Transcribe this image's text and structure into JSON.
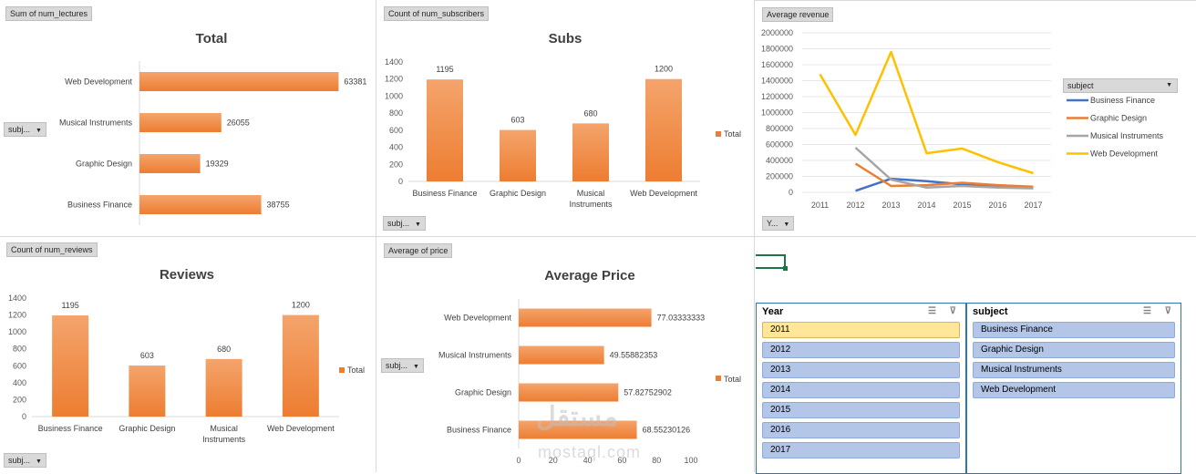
{
  "panels": {
    "lectures": {
      "field_button": "Sum of num_lectures",
      "filter_label": "subj...",
      "chart_data": {
        "type": "bar",
        "orientation": "horizontal",
        "title": "Total",
        "categories": [
          "Web Development",
          "Musical Instruments",
          "Graphic Design",
          "Business Finance"
        ],
        "values": [
          63381,
          26055,
          19329,
          38755
        ],
        "xlim": [
          0,
          65000
        ]
      }
    },
    "subscribers": {
      "field_button": "Count of num_subscribers",
      "filter_label": "subj...",
      "chart_data": {
        "type": "bar",
        "orientation": "vertical",
        "title": "Subs",
        "categories": [
          "Business Finance",
          "Graphic Design",
          "Musical Instruments",
          "Web Development"
        ],
        "category_lines": [
          [
            "Business Finance"
          ],
          [
            "Graphic Design"
          ],
          [
            "Musical",
            "Instruments"
          ],
          [
            "Web Development"
          ]
        ],
        "values": [
          1195,
          603,
          680,
          1200
        ],
        "ylim": [
          0,
          1400
        ],
        "yticks": [
          "0",
          "200",
          "400",
          "600",
          "800",
          "1000",
          "1200",
          "1400"
        ],
        "legend": "Total"
      }
    },
    "revenue": {
      "field_button": "Average revenue",
      "filter_label": "Y...",
      "legend_title": "subject",
      "chart_data": {
        "type": "line",
        "x": [
          "2011",
          "2012",
          "2013",
          "2014",
          "2015",
          "2016",
          "2017"
        ],
        "ylim": [
          0,
          2000000
        ],
        "yticks": [
          "0",
          "200000",
          "400000",
          "600000",
          "800000",
          "1000000",
          "1200000",
          "1400000",
          "1600000",
          "1800000",
          "2000000"
        ],
        "series": [
          {
            "name": "Business Finance",
            "color": "#4472c4",
            "values": [
              null,
              20000,
              170000,
              140000,
              100000,
              80000,
              60000
            ]
          },
          {
            "name": "Graphic Design",
            "color": "#ed7d31",
            "values": [
              null,
              360000,
              80000,
              90000,
              120000,
              90000,
              70000
            ]
          },
          {
            "name": "Musical Instruments",
            "color": "#a5a5a5",
            "values": [
              null,
              560000,
              160000,
              60000,
              80000,
              60000,
              50000
            ]
          },
          {
            "name": "Web Development",
            "color": "#ffc000",
            "values": [
              1480000,
              720000,
              1760000,
              490000,
              550000,
              380000,
              240000
            ]
          }
        ]
      }
    },
    "reviews": {
      "field_button": "Count of num_reviews",
      "filter_label": "subj...",
      "chart_data": {
        "type": "bar",
        "orientation": "vertical",
        "title": "Reviews",
        "categories": [
          "Business Finance",
          "Graphic Design",
          "Musical Instruments",
          "Web Development"
        ],
        "category_lines": [
          [
            "Business Finance"
          ],
          [
            "Graphic Design"
          ],
          [
            "Musical",
            "Instruments"
          ],
          [
            "Web Development"
          ]
        ],
        "values": [
          1195,
          603,
          680,
          1200
        ],
        "ylim": [
          0,
          1400
        ],
        "yticks": [
          "0",
          "200",
          "400",
          "600",
          "800",
          "1000",
          "1200",
          "1400"
        ],
        "legend": "Total"
      }
    },
    "price": {
      "field_button": "Average of price",
      "filter_label": "subj...",
      "chart_data": {
        "type": "bar",
        "orientation": "horizontal",
        "title": "Average Price",
        "categories": [
          "Web Development",
          "Musical Instruments",
          "Graphic Design",
          "Business Finance"
        ],
        "values": [
          77.03333333,
          49.55882353,
          57.82752902,
          68.55230126
        ],
        "value_labels": [
          "77.03333333",
          "49.55882353",
          "57.82752902",
          "68.55230126"
        ],
        "xlim": [
          0,
          100
        ],
        "xticks": [
          "0",
          "20",
          "40",
          "60",
          "80",
          "100"
        ],
        "legend": "Total"
      }
    }
  },
  "slicers": {
    "year": {
      "title": "Year",
      "items": [
        "2011",
        "2012",
        "2013",
        "2014",
        "2015",
        "2016",
        "2017"
      ],
      "selected": "2011"
    },
    "subject": {
      "title": "subject",
      "items": [
        "Business Finance",
        "Graphic Design",
        "Musical Instruments",
        "Web Development"
      ]
    }
  },
  "watermark": {
    "arabic": "مستقل",
    "latin": "mostaql.com"
  },
  "colors": {
    "bar": "#ed7d31",
    "bar_light": "#f4a46c",
    "slicer_item": "#b4c6e7",
    "slicer_selected": "#ffe699",
    "excel_green": "#217346"
  }
}
